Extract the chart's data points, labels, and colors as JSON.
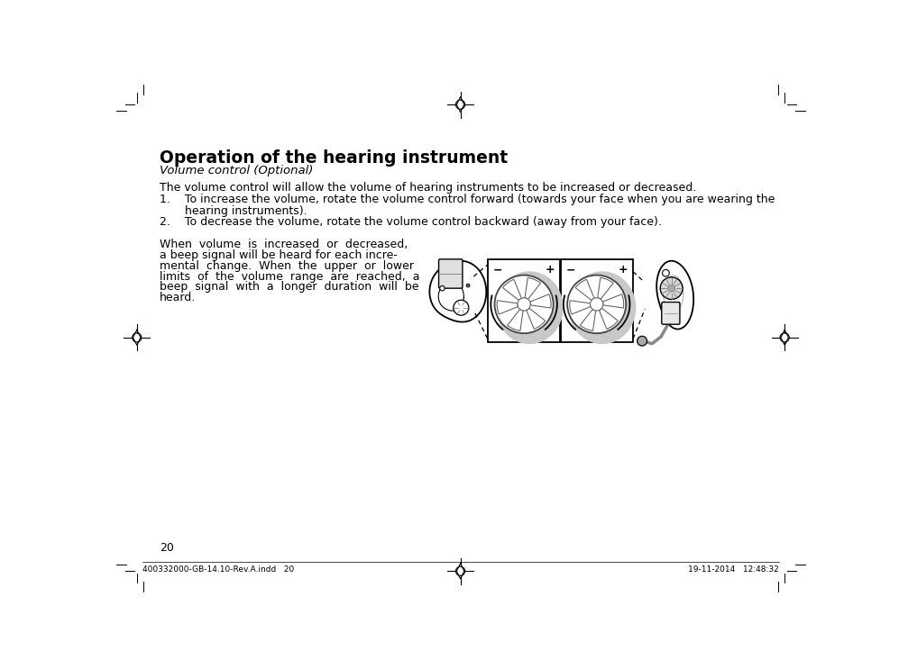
{
  "bg_color": "#ffffff",
  "title": "Operation of the hearing instrument",
  "subtitle": "Volume control (Optional)",
  "body_text": "The volume control will allow the volume of hearing instruments to be increased or decreased.",
  "item1_line1": "1.    To increase the volume, rotate the volume control forward (towards your face when you are wearing the",
  "item1_line2": "       hearing instruments).",
  "item2": "2.    To decrease the volume, rotate the volume control backward (away from your face).",
  "para_lines": [
    "When  volume  is  increased  or  decreased,",
    "a beep signal will be heard for each incre-",
    "mental  change.  When  the  upper  or  lower",
    "limits  of  the  volume  range  are  reached,  a",
    "beep  signal  with  a  longer  duration  will  be",
    "heard."
  ],
  "page_number": "20",
  "footer_left": "400332000-GB-14.10-Rev.A.indd   20",
  "footer_right": "19-11-2014   12:48:32"
}
